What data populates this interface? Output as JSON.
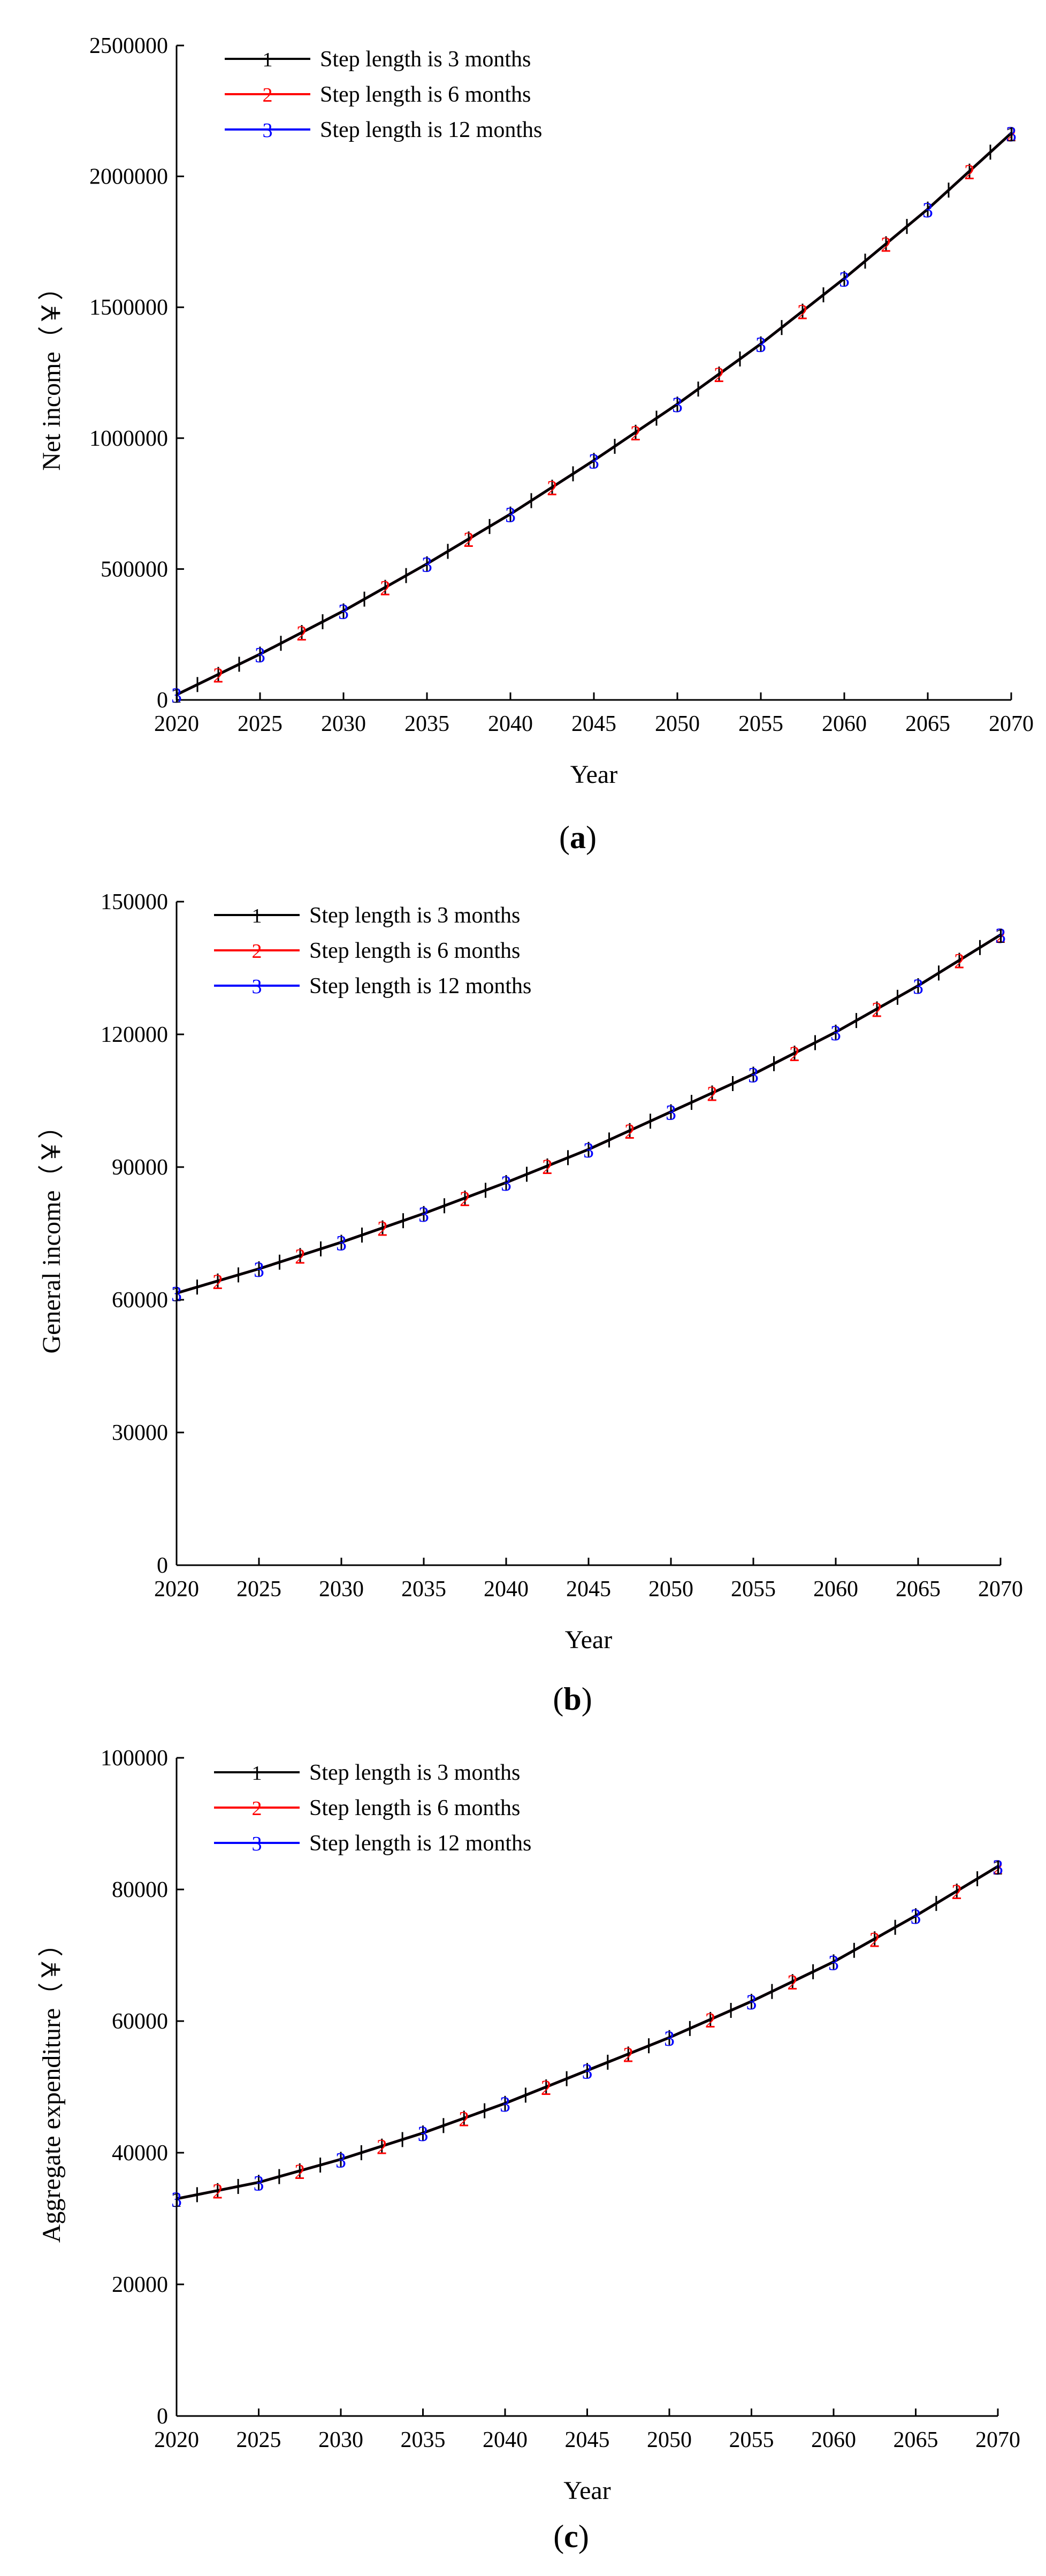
{
  "figure": {
    "captions": [
      "(a)",
      "(b)",
      "(c)"
    ]
  },
  "chart_data": [
    {
      "type": "line",
      "panel": "a",
      "caption_open": "(",
      "caption_letter": "a",
      "caption_close": ")",
      "title": "",
      "xlabel": "Year",
      "ylabel": "Net income（￥）",
      "xlim": [
        2020,
        2070
      ],
      "ylim": [
        0,
        2500000
      ],
      "xticks": [
        2020,
        2025,
        2030,
        2035,
        2040,
        2045,
        2050,
        2055,
        2060,
        2065,
        2070
      ],
      "yticks": [
        0,
        500000,
        1000000,
        1500000,
        2000000,
        2500000
      ],
      "legend_position": "top-left",
      "grid": false,
      "series": [
        {
          "name": "Step length is 3 months",
          "marker": "1",
          "color": "#000000",
          "x": [
            2020,
            2025,
            2030,
            2035,
            2040,
            2045,
            2050,
            2055,
            2060,
            2065,
            2070
          ],
          "values": [
            20000,
            175000,
            340000,
            520000,
            710000,
            915000,
            1130000,
            1360000,
            1610000,
            1875000,
            2165000
          ]
        },
        {
          "name": "Step length is 6 months",
          "marker": "2",
          "color": "#ff0000",
          "x": [
            2020,
            2025,
            2030,
            2035,
            2040,
            2045,
            2050,
            2055,
            2060,
            2065,
            2070
          ],
          "values": [
            20000,
            175000,
            340000,
            520000,
            710000,
            915000,
            1130000,
            1360000,
            1610000,
            1875000,
            2165000
          ]
        },
        {
          "name": "Step length is 12 months",
          "marker": "3",
          "color": "#0000ff",
          "x": [
            2020,
            2025,
            2030,
            2035,
            2040,
            2045,
            2050,
            2055,
            2060,
            2065,
            2070
          ],
          "values": [
            20000,
            175000,
            340000,
            520000,
            710000,
            915000,
            1130000,
            1360000,
            1610000,
            1875000,
            2165000
          ]
        }
      ]
    },
    {
      "type": "line",
      "panel": "b",
      "caption_open": "(",
      "caption_letter": "b",
      "caption_close": ")",
      "title": "",
      "xlabel": "Year",
      "ylabel": "General income（￥）",
      "xlim": [
        2020,
        2070
      ],
      "ylim": [
        0,
        150000
      ],
      "xticks": [
        2020,
        2025,
        2030,
        2035,
        2040,
        2045,
        2050,
        2055,
        2060,
        2065,
        2070
      ],
      "yticks": [
        0,
        30000,
        60000,
        90000,
        120000,
        150000
      ],
      "legend_position": "top-left",
      "grid": false,
      "series": [
        {
          "name": "Step length is 3 months",
          "marker": "1",
          "color": "#000000",
          "x": [
            2020,
            2025,
            2030,
            2035,
            2040,
            2045,
            2050,
            2055,
            2060,
            2065,
            2070
          ],
          "values": [
            61500,
            67000,
            73000,
            79500,
            86500,
            94000,
            102500,
            111000,
            120500,
            131000,
            142500
          ]
        },
        {
          "name": "Step length is 6 months",
          "marker": "2",
          "color": "#ff0000",
          "x": [
            2020,
            2025,
            2030,
            2035,
            2040,
            2045,
            2050,
            2055,
            2060,
            2065,
            2070
          ],
          "values": [
            61500,
            67000,
            73000,
            79500,
            86500,
            94000,
            102500,
            111000,
            120500,
            131000,
            142500
          ]
        },
        {
          "name": "Step length is 12 months",
          "marker": "3",
          "color": "#0000ff",
          "x": [
            2020,
            2025,
            2030,
            2035,
            2040,
            2045,
            2050,
            2055,
            2060,
            2065,
            2070
          ],
          "values": [
            61500,
            67000,
            73000,
            79500,
            86500,
            94000,
            102500,
            111000,
            120500,
            131000,
            142500
          ]
        }
      ]
    },
    {
      "type": "line",
      "panel": "c",
      "caption_open": "(",
      "caption_letter": "c",
      "caption_close": ")",
      "title": "",
      "xlabel": "Year",
      "ylabel": "Aggregate expenditure（￥）",
      "xlim": [
        2020,
        2070
      ],
      "ylim": [
        0,
        100000
      ],
      "xticks": [
        2020,
        2025,
        2030,
        2035,
        2040,
        2045,
        2050,
        2055,
        2060,
        2065,
        2070
      ],
      "yticks": [
        0,
        20000,
        40000,
        60000,
        80000,
        100000
      ],
      "legend_position": "top-left",
      "grid": false,
      "series": [
        {
          "name": "Step length is 3 months",
          "marker": "1",
          "color": "#000000",
          "x": [
            2020,
            2025,
            2030,
            2035,
            2040,
            2045,
            2050,
            2055,
            2060,
            2065,
            2070
          ],
          "values": [
            33000,
            35500,
            39000,
            43000,
            47500,
            52500,
            57500,
            63000,
            69000,
            76000,
            83500
          ]
        },
        {
          "name": "Step length is 6 months",
          "marker": "2",
          "color": "#ff0000",
          "x": [
            2020,
            2025,
            2030,
            2035,
            2040,
            2045,
            2050,
            2055,
            2060,
            2065,
            2070
          ],
          "values": [
            33000,
            35500,
            39000,
            43000,
            47500,
            52500,
            57500,
            63000,
            69000,
            76000,
            83500
          ]
        },
        {
          "name": "Step length is 12 months",
          "marker": "3",
          "color": "#0000ff",
          "x": [
            2020,
            2025,
            2030,
            2035,
            2040,
            2045,
            2050,
            2055,
            2060,
            2065,
            2070
          ],
          "values": [
            33000,
            35500,
            39000,
            43000,
            47500,
            52500,
            57500,
            63000,
            69000,
            76000,
            83500
          ]
        }
      ]
    }
  ]
}
